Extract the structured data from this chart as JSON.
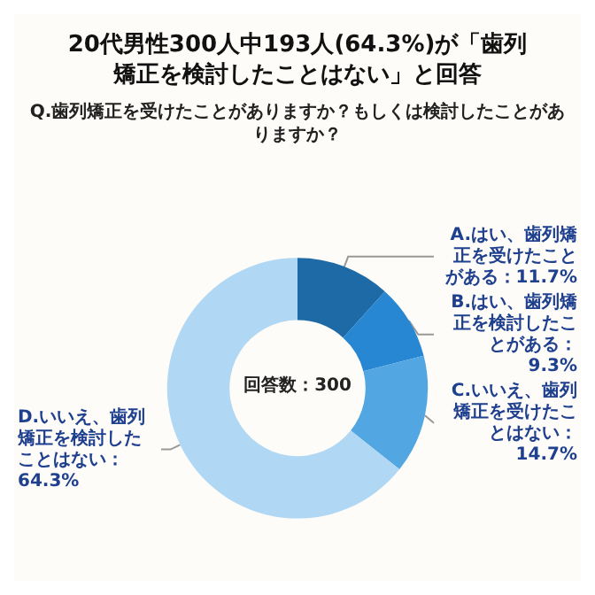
{
  "chart_data": {
    "type": "donut",
    "title": "20代男性300人中193人(64.3%)が「歯列矯正を検討したことはない」と回答",
    "subtitle": "Q.歯列矯正を受けたことがありますか？もしくは検討したことがありますか？",
    "categories": [
      "A.はい、歯列矯正を受けたことがある",
      "B.はい、歯列矯正を検討したことがある",
      "C.いいえ、歯列矯正を受けたことはない",
      "D.いいえ、歯列矯正を検討したことはない"
    ],
    "values": [
      11.7,
      9.3,
      14.7,
      64.3
    ],
    "value_labels": [
      "：11.7%",
      "：9.3%",
      "：14.7%",
      "：64.3%"
    ],
    "colors": [
      "#1e6aa6",
      "#2887d2",
      "#52a6e2",
      "#b0d7f3"
    ],
    "legend": false,
    "annotations": [
      "回答数：300"
    ]
  }
}
